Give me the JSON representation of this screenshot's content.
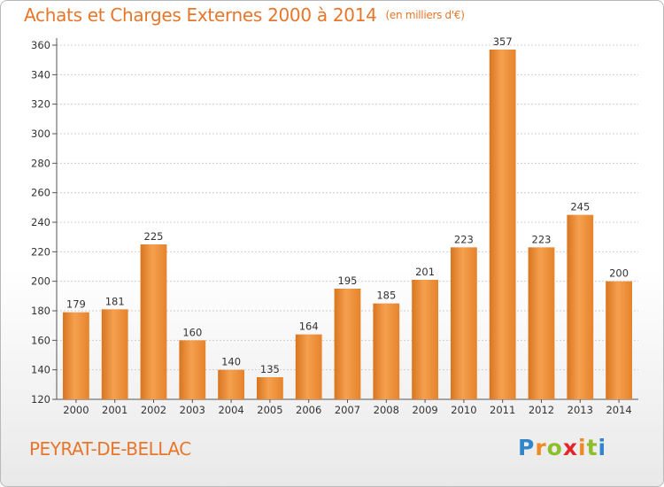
{
  "chart_data": {
    "type": "bar",
    "title": "Achats et Charges Externes 2000 à 2014",
    "subtitle": "(en milliers d'€)",
    "categories": [
      "2000",
      "2001",
      "2002",
      "2003",
      "2004",
      "2005",
      "2006",
      "2007",
      "2008",
      "2009",
      "2010",
      "2011",
      "2012",
      "2013",
      "2014"
    ],
    "values": [
      179,
      181,
      225,
      160,
      140,
      135,
      164,
      195,
      185,
      201,
      223,
      357,
      223,
      245,
      200
    ],
    "ylim": [
      120,
      360
    ],
    "yticks": [
      120,
      140,
      160,
      180,
      200,
      220,
      240,
      260,
      280,
      300,
      320,
      340,
      360
    ],
    "grid": true,
    "bar_color": "#f0923e",
    "xlabel": "",
    "ylabel": ""
  },
  "location": "PEYRAT-DE-BELLAC",
  "brand": {
    "letters": [
      "P",
      "r",
      "o",
      "x",
      "i",
      "t",
      "i"
    ],
    "colors": [
      "#2f86c8",
      "#f18a22",
      "#8dbf2a",
      "#e3262b",
      "#f18a22",
      "#8dbf2a",
      "#2f86c8"
    ]
  }
}
